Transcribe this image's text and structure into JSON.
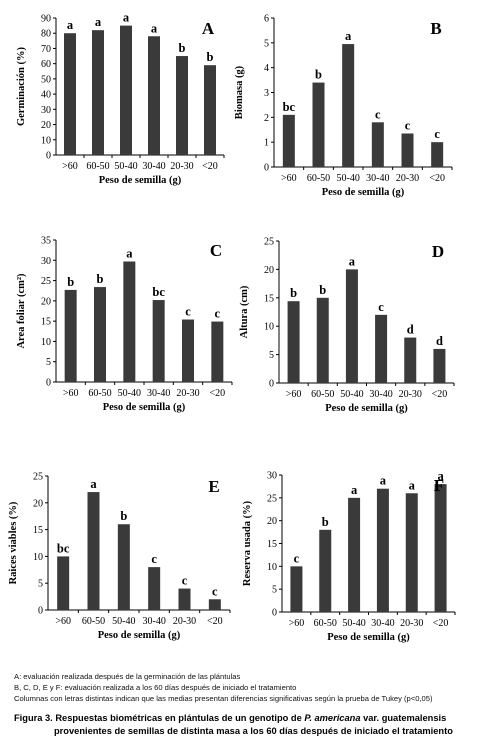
{
  "chart_data": [
    {
      "type": "bar",
      "panel": "A",
      "categories": [
        ">60",
        "60-50",
        "50-40",
        "30-40",
        "20-30",
        "<20"
      ],
      "values": [
        80,
        82,
        85,
        78,
        65,
        59
      ],
      "labels": [
        "a",
        "a",
        "a",
        "a",
        "b",
        "b"
      ],
      "xlabel": "Peso de semilla (g)",
      "ylabel": "Germinación (%)",
      "ylim": [
        0,
        90
      ],
      "yticks": [
        0,
        10,
        20,
        30,
        40,
        50,
        60,
        70,
        80,
        90
      ]
    },
    {
      "type": "bar",
      "panel": "B",
      "categories": [
        ">60",
        "60-50",
        "50-40",
        "30-40",
        "20-30",
        "<20"
      ],
      "values": [
        2.1,
        3.4,
        4.95,
        1.8,
        1.35,
        1.0
      ],
      "labels": [
        "bc",
        "b",
        "a",
        "c",
        "c",
        "c"
      ],
      "xlabel": "Peso de semilla (g)",
      "ylabel": "Biomasa (g)",
      "ylim": [
        0,
        6
      ],
      "yticks": [
        0,
        1,
        2,
        3,
        4,
        5,
        6
      ]
    },
    {
      "type": "bar",
      "panel": "C",
      "categories": [
        ">60",
        "60-50",
        "50-40",
        "30-40",
        "20-30",
        "<20"
      ],
      "values": [
        22.7,
        23.4,
        29.7,
        20.2,
        15.4,
        14.9
      ],
      "labels": [
        "b",
        "b",
        "a",
        "bc",
        "c",
        "c"
      ],
      "xlabel": "Peso de semilla (g)",
      "ylabel": "Area foliar (cm²)",
      "ylim": [
        0,
        35
      ],
      "yticks": [
        0,
        5,
        10,
        15,
        20,
        25,
        30,
        35
      ]
    },
    {
      "type": "bar",
      "panel": "D",
      "categories": [
        ">60",
        "60-50",
        "50-40",
        "30-40",
        "20-30",
        "<20"
      ],
      "values": [
        14.4,
        15,
        20,
        12,
        8,
        6
      ],
      "labels": [
        "b",
        "b",
        "a",
        "c",
        "d",
        "d"
      ],
      "xlabel": "Peso de semilla (g)",
      "ylabel": "Altura (cm)",
      "ylim": [
        0,
        25
      ],
      "yticks": [
        0,
        5,
        10,
        15,
        20,
        25
      ]
    },
    {
      "type": "bar",
      "panel": "E",
      "categories": [
        ">60",
        "60-50",
        "50-40",
        "30-40",
        "20-30",
        "<20"
      ],
      "values": [
        10,
        22,
        16,
        8,
        4,
        2
      ],
      "labels": [
        "bc",
        "a",
        "b",
        "c",
        "c",
        "c"
      ],
      "xlabel": "Peso de semilla (g)",
      "ylabel": "Raices viables (%)",
      "ylim": [
        0,
        25
      ],
      "yticks": [
        0,
        5,
        10,
        15,
        20,
        25
      ]
    },
    {
      "type": "bar",
      "panel": "F",
      "categories": [
        ">60",
        "60-50",
        "50-40",
        "30-40",
        "20-30",
        "<20"
      ],
      "values": [
        10,
        18,
        25,
        27,
        26,
        28
      ],
      "labels": [
        "c",
        "b",
        "a",
        "a",
        "a",
        "a"
      ],
      "xlabel": "Peso de semilla (g)",
      "ylabel": "Reserva usada (%)",
      "ylim": [
        0,
        30
      ],
      "yticks": [
        0,
        5,
        10,
        15,
        20,
        25,
        30
      ]
    }
  ],
  "notes": [
    "A: evaluación realizada después de la germinación de las plántulas",
    "B, C, D, E y F: evaluación realizada a los 60 días después de iniciado el tratamiento",
    "Columnas con letras distintas indican que las medias presentan diferencias significativas según la prueba de Tukey (p<0,05)"
  ],
  "caption": {
    "prefix": "Figura 3. Respuestas biométricas en plántulas de un genotipo de ",
    "species": "P. americana",
    "suffix": " var. guatemalensis",
    "line2": "provenientes de semillas de distinta masa a los 60 días después de iniciado el tratamiento"
  },
  "colors": {
    "bar": "#3a3a3a",
    "axis": "#000000",
    "text": "#000000"
  }
}
